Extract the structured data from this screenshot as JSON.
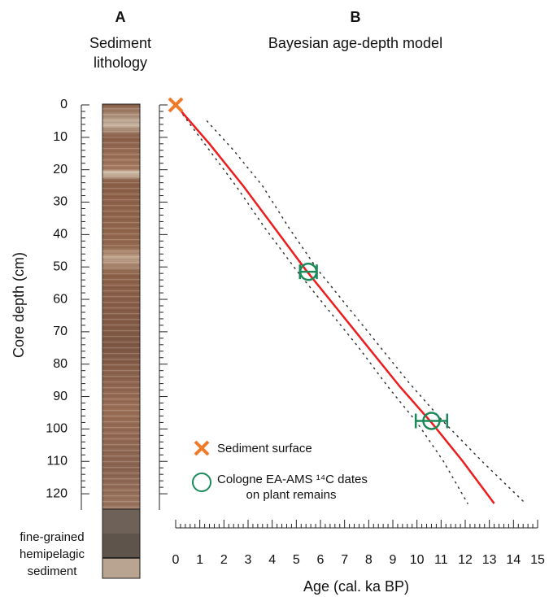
{
  "chart_data": {
    "type": "line",
    "panels": [
      {
        "label": "A",
        "title": [
          "Sediment",
          "lithology"
        ]
      },
      {
        "label": "B",
        "title": "Bayesian age-depth model"
      }
    ],
    "lithology_label": [
      "fine-grained",
      "hemipelagic",
      "sediment"
    ],
    "xlabel": "Age (cal. ka BP)",
    "ylabel": "Core depth (cm)",
    "xlim": [
      0,
      15
    ],
    "ylim": [
      0,
      125
    ],
    "y_inverted": true,
    "xticks": [
      0,
      1,
      2,
      3,
      4,
      5,
      6,
      7,
      8,
      9,
      10,
      11,
      12,
      13,
      14,
      15
    ],
    "yticks": [
      0,
      10,
      20,
      30,
      40,
      50,
      60,
      70,
      80,
      90,
      100,
      110,
      120
    ],
    "median": {
      "color": "#ee1c1c",
      "x": [
        0,
        1.4,
        2.8,
        4.1,
        5.4,
        6.7,
        8.0,
        9.3,
        10.6,
        11.9,
        13.2
      ],
      "y": [
        0,
        12,
        25,
        38,
        51,
        63,
        75,
        87,
        98,
        110,
        123
      ]
    },
    "bounds": [
      {
        "color": "#333333",
        "x": [
          0,
          1.2,
          2.5,
          3.7,
          5.0,
          6.3,
          7.6,
          8.8,
          10.0,
          11.1,
          12.1
        ],
        "y": [
          0,
          12,
          25,
          38,
          51,
          63,
          75,
          87,
          98,
          110,
          123
        ]
      },
      {
        "color": "#333333",
        "x": [
          1.3,
          2.4,
          3.6,
          4.7,
          5.9,
          7.1,
          8.4,
          9.7,
          11.0,
          12.7,
          14.5
        ],
        "y": [
          5,
          14,
          25,
          38,
          51,
          62,
          74,
          86,
          97,
          110,
          123
        ]
      }
    ],
    "surface": {
      "name": "Sediment surface",
      "color": "#f07a2a",
      "x": [
        0
      ],
      "y": [
        0
      ]
    },
    "dates": {
      "name": [
        "Cologne EA-AMS ¹⁴C dates",
        "on plant remains"
      ],
      "color": "#1b8a5a",
      "x": [
        5.5,
        10.6
      ],
      "y": [
        51.5,
        97.5
      ],
      "xerr": [
        0.35,
        0.65
      ]
    }
  }
}
